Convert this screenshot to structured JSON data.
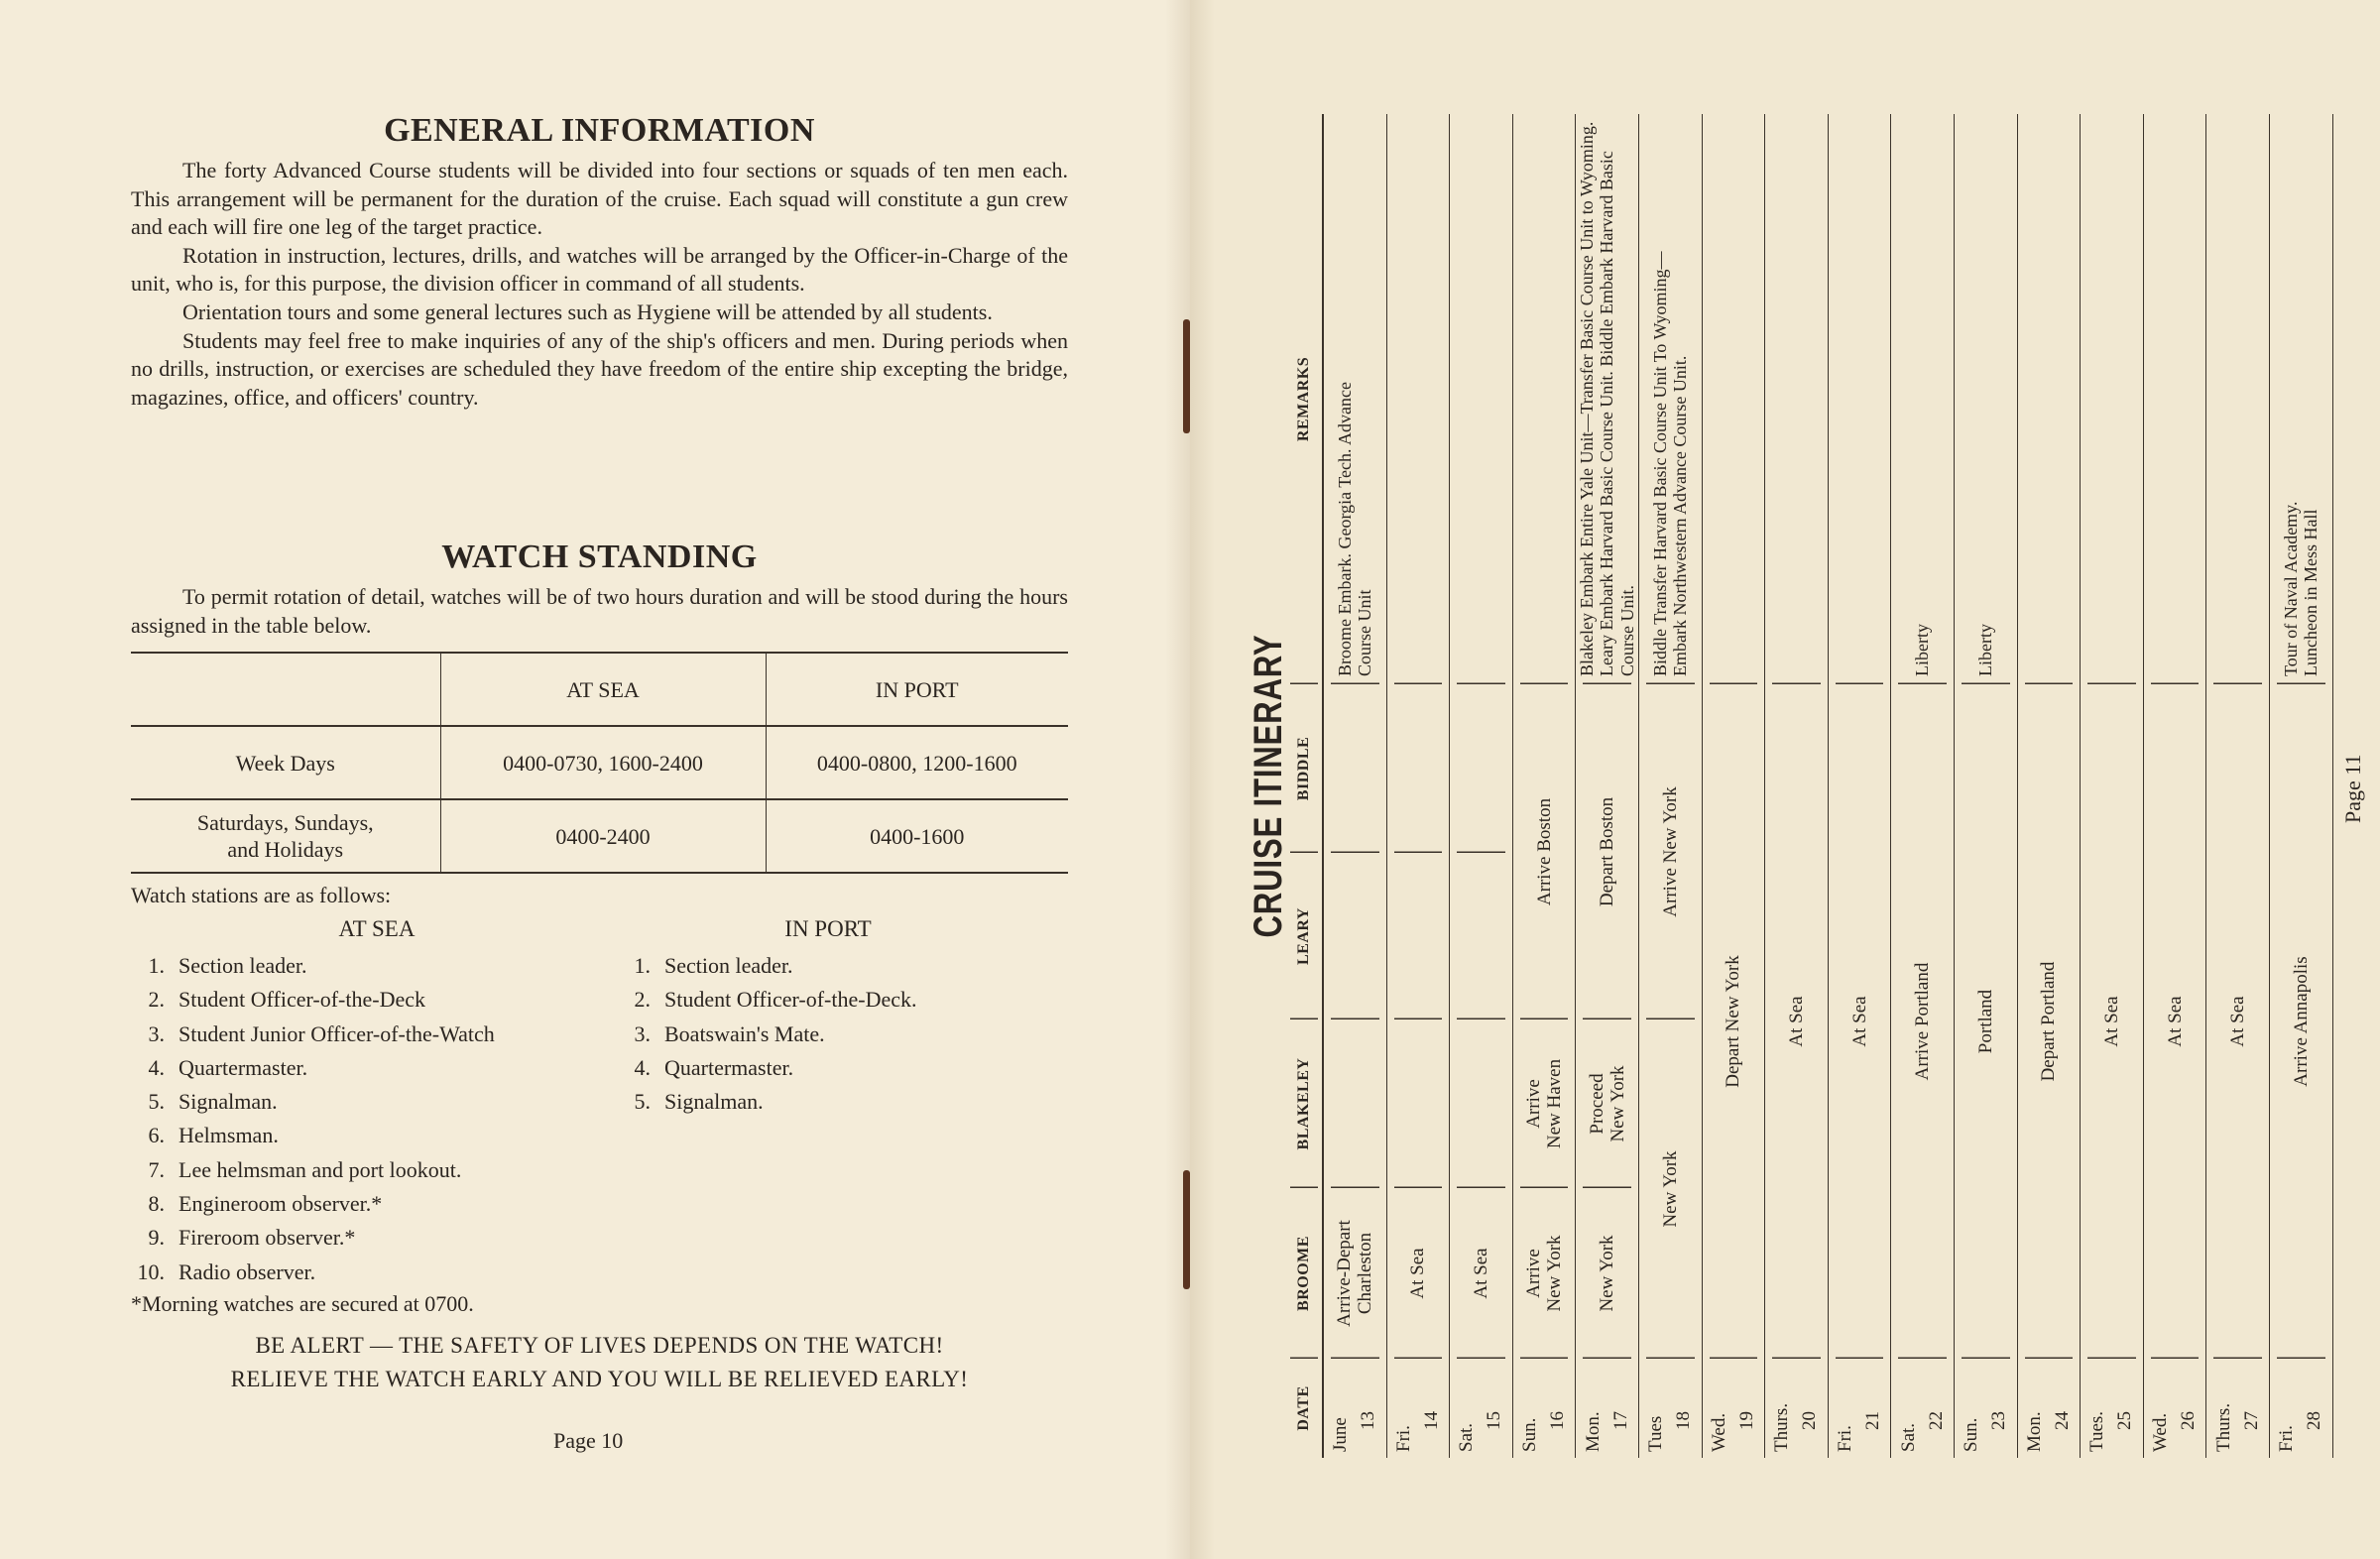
{
  "left_page": {
    "general_title": "GENERAL INFORMATION",
    "general_paragraphs": [
      "The forty Advanced Course students will be divided into four sections or squads of ten men each. This arrangement will be permanent for the duration of the cruise. Each squad will constitute a gun crew and each will fire one leg of the target practice.",
      "Rotation in instruction, lectures, drills, and watches will be arranged by the Officer-in-Charge of the unit, who is, for this purpose, the division officer in command of all students.",
      "Orientation tours and some general lectures such as Hygiene will be attended by all students.",
      "Students may feel free to make inquiries of any of the ship's officers and men. During periods when no drills, instruction, or exercises are scheduled they have freedom of the entire ship excepting the bridge, magazines, office, and officers' country."
    ],
    "watch_title": "WATCH STANDING",
    "watch_paragraph": "To permit rotation of detail, watches will be of two hours duration and will be stood during the hours assigned in the table below.",
    "watch_table": {
      "headers": [
        "",
        "AT SEA",
        "IN PORT"
      ],
      "rows": [
        [
          "Week Days",
          "0400-0730, 1600-2400",
          "0400-0800, 1200-1600"
        ],
        [
          "Saturdays, Sundays,\nand Holidays",
          "0400-2400",
          "0400-1600"
        ]
      ]
    },
    "stations_label": "Watch stations are as follows:",
    "at_sea_heading": "AT SEA",
    "in_port_heading": "IN PORT",
    "at_sea_stations": [
      {
        "n": "1.",
        "text": "Section leader."
      },
      {
        "n": "2.",
        "text": "Student  Officer-of-the-Deck"
      },
      {
        "n": "3.",
        "text": "Student Junior Officer-of-the-Watch"
      },
      {
        "n": "4.",
        "text": "Quartermaster."
      },
      {
        "n": "5.",
        "text": "Signalman."
      },
      {
        "n": "6.",
        "text": "Helmsman."
      },
      {
        "n": "7.",
        "text": "Lee helmsman and port lookout."
      },
      {
        "n": "8.",
        "text": "Engineroom observer.*"
      },
      {
        "n": "9.",
        "text": "Fireroom  observer.*"
      },
      {
        "n": "10.",
        "text": "Radio observer."
      }
    ],
    "in_port_stations": [
      {
        "n": "1.",
        "text": "Section leader."
      },
      {
        "n": "2.",
        "text": "Student  Officer-of-the-Deck."
      },
      {
        "n": "3.",
        "text": "Boatswain's Mate."
      },
      {
        "n": "4.",
        "text": "Quartermaster."
      },
      {
        "n": "5.",
        "text": "Signalman."
      }
    ],
    "footnote": "*Morning watches are secured at 0700.",
    "alert_line1": "BE ALERT — THE SAFETY OF LIVES DEPENDS ON THE WATCH!",
    "alert_line2": "RELIEVE THE WATCH EARLY AND YOU WILL BE RELIEVED EARLY!",
    "page_number": "Page 10"
  },
  "right_page": {
    "title": "CRUISE ITINERARY",
    "headers": [
      "DATE",
      "BROOME",
      "BLAKELEY",
      "LEARY",
      "BIDDLE",
      "REMARKS"
    ],
    "rows": [
      {
        "day": "June",
        "date": "13",
        "cells": [
          {
            "text": "Arrive-Depart\nCharleston",
            "span": 1
          },
          {
            "text": "",
            "span": 1
          },
          {
            "text": "",
            "span": 1
          },
          {
            "text": "",
            "span": 1
          }
        ],
        "remarks": "Broome Embark. Georgia Tech. Advance\nCourse Unit"
      },
      {
        "day": "Fri.",
        "date": "14",
        "cells": [
          {
            "text": "At Sea",
            "span": 1
          },
          {
            "text": "",
            "span": 1
          },
          {
            "text": "",
            "span": 1
          },
          {
            "text": "",
            "span": 1
          }
        ],
        "remarks": ""
      },
      {
        "day": "Sat.",
        "date": "15",
        "cells": [
          {
            "text": "At Sea",
            "span": 1
          },
          {
            "text": "",
            "span": 1
          },
          {
            "text": "",
            "span": 1
          },
          {
            "text": "",
            "span": 1
          }
        ],
        "remarks": ""
      },
      {
        "day": "Sun.",
        "date": "16",
        "cells": [
          {
            "text": "Arrive\nNew York",
            "span": 1
          },
          {
            "text": "Arrive\nNew Haven",
            "span": 1
          },
          {
            "text": "Arrive Boston",
            "span": 2
          }
        ],
        "remarks": ""
      },
      {
        "day": "Mon.",
        "date": "17",
        "cells": [
          {
            "text": "New York",
            "span": 1
          },
          {
            "text": "Proceed\nNew York",
            "span": 1
          },
          {
            "text": "Depart Boston",
            "span": 2
          }
        ],
        "remarks": "Blakeley Embark Entire Yale Unit—Transfer Basic Course Unit to Wyoming. Leary Embark Harvard Basic Course Unit. Biddle Embark Harvard Basic Course Unit."
      },
      {
        "day": "Tues",
        "date": "18",
        "cells": [
          {
            "text": "New York",
            "span": 2
          },
          {
            "text": "Arrive New York",
            "span": 2
          }
        ],
        "remarks": "Biddle Transfer Harvard Basic Course Unit To Wyoming—\nEmbark  Northwestern  Advance  Course  Unit."
      },
      {
        "day": "Wed.",
        "date": "19",
        "cells": [
          {
            "text": "Depart New York",
            "span": 4
          }
        ],
        "remarks": ""
      },
      {
        "day": "Thurs.",
        "date": "20",
        "cells": [
          {
            "text": "At Sea",
            "span": 4
          }
        ],
        "remarks": ""
      },
      {
        "day": "Fri.",
        "date": "21",
        "cells": [
          {
            "text": "At Sea",
            "span": 4
          }
        ],
        "remarks": ""
      },
      {
        "day": "Sat.",
        "date": "22",
        "cells": [
          {
            "text": "Arrive Portland",
            "span": 4
          }
        ],
        "remarks": "Liberty"
      },
      {
        "day": "Sun.",
        "date": "23",
        "cells": [
          {
            "text": "Portland",
            "span": 4
          }
        ],
        "remarks": "Liberty"
      },
      {
        "day": "Mon.",
        "date": "24",
        "cells": [
          {
            "text": "Depart Portland",
            "span": 4
          }
        ],
        "remarks": ""
      },
      {
        "day": "Tues.",
        "date": "25",
        "cells": [
          {
            "text": "At Sea",
            "span": 4
          }
        ],
        "remarks": ""
      },
      {
        "day": "Wed.",
        "date": "26",
        "cells": [
          {
            "text": "At Sea",
            "span": 4
          }
        ],
        "remarks": ""
      },
      {
        "day": "Thurs.",
        "date": "27",
        "cells": [
          {
            "text": "At Sea",
            "span": 4
          }
        ],
        "remarks": ""
      },
      {
        "day": "Fri.",
        "date": "28",
        "cells": [
          {
            "text": "Arrive Annapolis",
            "span": 4
          }
        ],
        "remarks": "Tour of Naval Academy.\nLuncheon in Mess Hall"
      }
    ],
    "page_number": "Page 11"
  },
  "colors": {
    "paper": "#f2e9d4",
    "ink": "#2b2520",
    "staple": "#5a3420"
  }
}
